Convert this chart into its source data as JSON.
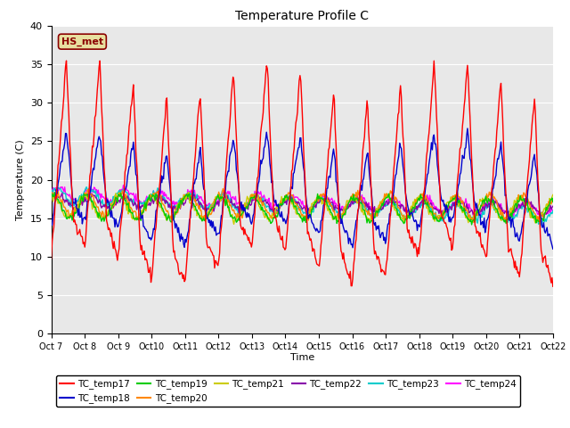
{
  "title": "Temperature Profile C",
  "xlabel": "Time",
  "ylabel": "Temperature (C)",
  "ylim": [
    0,
    40
  ],
  "background_color": "#e8e8e8",
  "annotation_text": "HS_met",
  "annotation_bg": "#e8e0a0",
  "annotation_border": "#8b0000",
  "annotation_text_color": "#8b0000",
  "series_colors": {
    "TC_temp17": "#ff0000",
    "TC_temp18": "#0000cc",
    "TC_temp19": "#00cc00",
    "TC_temp20": "#ff8800",
    "TC_temp21": "#cccc00",
    "TC_temp22": "#8800aa",
    "TC_temp23": "#00cccc",
    "TC_temp24": "#ff00ff"
  },
  "xtick_labels": [
    "Oct 7",
    "Oct 8",
    "Oct 9",
    "Oct 10",
    "Oct 11",
    "Oct 12",
    "Oct 13",
    "Oct 14",
    "Oct 15",
    "Oct 16",
    "Oct 17",
    "Oct 18",
    "Oct 19",
    "Oct 20",
    "Oct 21",
    "Oct 22"
  ],
  "n_points": 600
}
